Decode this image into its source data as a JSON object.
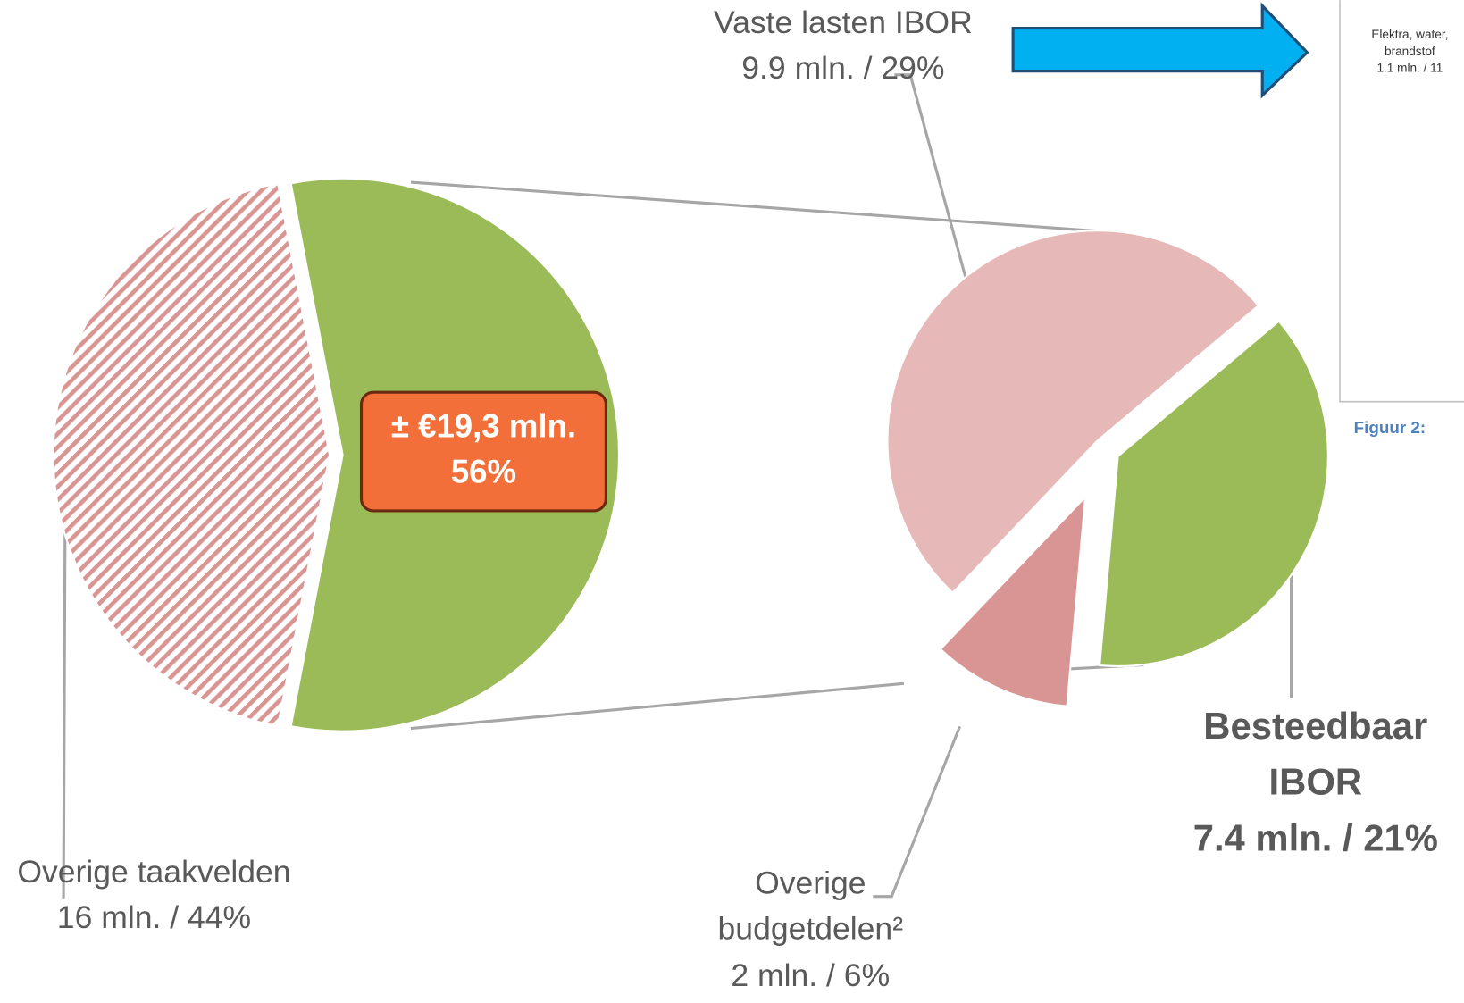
{
  "chart_data": {
    "type": "pie",
    "main": {
      "categories": [
        "Overige taakvelden",
        null
      ],
      "values": [
        44,
        56
      ],
      "value_labels": [
        "16 mln. / 44%",
        "56%"
      ],
      "callout": "± €19,3 mln.",
      "colors": [
        "#d99594",
        "#9bbb59"
      ],
      "pattern": [
        "hatch",
        null
      ]
    },
    "secondary": {
      "categories": [
        "Vaste lasten IBOR",
        "Besteedbaar IBOR",
        "Overige budgetdelen²"
      ],
      "values": [
        29,
        21,
        6
      ],
      "value_labels": [
        "9.9 mln. / 29%",
        "7.4 mln. / 21%",
        "2 mln. / 6%"
      ],
      "colors": [
        "#e6b8b7",
        "#9bbb59",
        "#d99594"
      ]
    },
    "partial_label": {
      "name": "Elektra, water, brandstof",
      "value_label": "1.1 mln. / 11"
    },
    "figure_caption": "Figuur 2:"
  }
}
